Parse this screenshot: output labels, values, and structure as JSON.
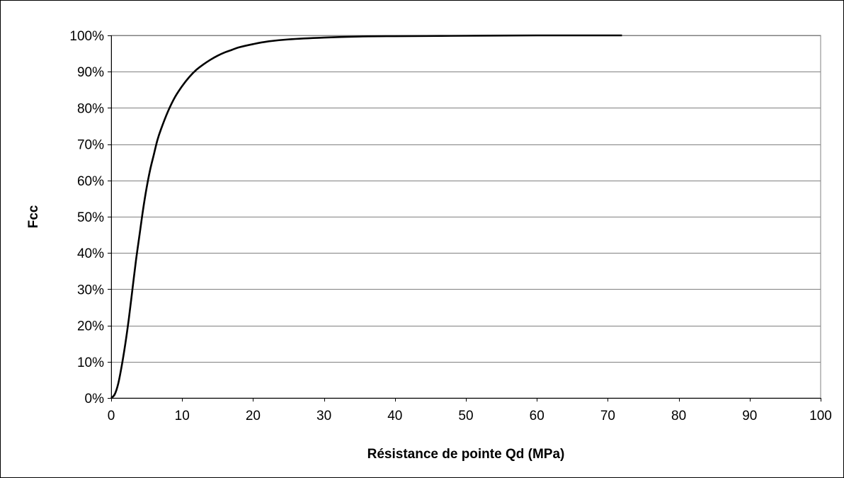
{
  "chart_data": {
    "type": "line",
    "title": "",
    "xlabel": "Résistance de pointe Qd (MPa)",
    "ylabel": "Fcc",
    "xlim": [
      0,
      100
    ],
    "ylim": [
      0,
      100
    ],
    "x_ticks": [
      0,
      10,
      20,
      30,
      40,
      50,
      60,
      70,
      80,
      90,
      100
    ],
    "x_tick_labels": [
      "0",
      "10",
      "20",
      "30",
      "40",
      "50",
      "60",
      "70",
      "80",
      "90",
      "100"
    ],
    "y_ticks": [
      0,
      10,
      20,
      30,
      40,
      50,
      60,
      70,
      80,
      90,
      100
    ],
    "y_tick_labels": [
      "0%",
      "10%",
      "20%",
      "30%",
      "40%",
      "50%",
      "60%",
      "70%",
      "80%",
      "90%",
      "100%"
    ],
    "grid": "horizontal",
    "legend": "none",
    "series": [
      {
        "color": "#000000",
        "x": [
          0,
          0.5,
          1,
          1.5,
          2,
          2.5,
          3,
          3.5,
          4,
          4.5,
          5,
          5.5,
          6,
          6.5,
          7,
          8,
          9,
          10,
          11,
          12,
          13,
          14,
          15,
          16,
          17,
          18,
          20,
          22,
          25,
          30,
          35,
          40,
          50,
          60,
          72
        ],
        "y": [
          0,
          1,
          4,
          9,
          15,
          22,
          30,
          38,
          45,
          52,
          58,
          63,
          67,
          71,
          74,
          79,
          83,
          86,
          88.5,
          90.5,
          92,
          93.3,
          94.4,
          95.3,
          96,
          96.7,
          97.6,
          98.3,
          98.9,
          99.4,
          99.7,
          99.8,
          99.9,
          100,
          100
        ]
      }
    ]
  }
}
